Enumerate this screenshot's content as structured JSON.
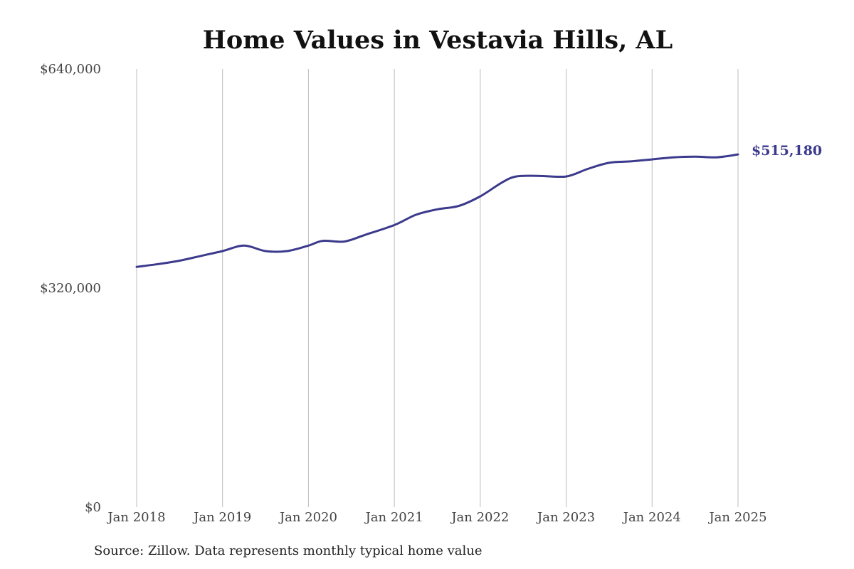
{
  "chart_data": {
    "type": "line",
    "title": "Home Values in Vestavia Hills, AL",
    "xlabel": "",
    "ylabel": "",
    "ylim": [
      0,
      640000
    ],
    "y_ticks": [
      {
        "value": 0,
        "label": "$0"
      },
      {
        "value": 320000,
        "label": "$320,000"
      },
      {
        "value": 640000,
        "label": "$640,000"
      }
    ],
    "x_ticks": [
      "Jan 2018",
      "Jan 2019",
      "Jan 2020",
      "Jan 2021",
      "Jan 2022",
      "Jan 2023",
      "Jan 2024",
      "Jan 2025"
    ],
    "grid": "vertical",
    "legend": "none",
    "series": [
      {
        "color": "#3b3a8c",
        "points": [
          {
            "x": "2018-01",
            "y": 351000
          },
          {
            "x": "2018-04",
            "y": 355000
          },
          {
            "x": "2018-07",
            "y": 360000
          },
          {
            "x": "2018-10",
            "y": 367000
          },
          {
            "x": "2019-01",
            "y": 374000
          },
          {
            "x": "2019-04",
            "y": 382000
          },
          {
            "x": "2019-07",
            "y": 374000
          },
          {
            "x": "2019-10",
            "y": 374000
          },
          {
            "x": "2020-01",
            "y": 382000
          },
          {
            "x": "2020-03",
            "y": 389000
          },
          {
            "x": "2020-06",
            "y": 388000
          },
          {
            "x": "2020-09",
            "y": 398000
          },
          {
            "x": "2021-01",
            "y": 412000
          },
          {
            "x": "2021-04",
            "y": 427000
          },
          {
            "x": "2021-07",
            "y": 435000
          },
          {
            "x": "2021-10",
            "y": 440000
          },
          {
            "x": "2022-01",
            "y": 454000
          },
          {
            "x": "2022-04",
            "y": 474000
          },
          {
            "x": "2022-06",
            "y": 483000
          },
          {
            "x": "2022-09",
            "y": 484000
          },
          {
            "x": "2023-01",
            "y": 483000
          },
          {
            "x": "2023-04",
            "y": 494000
          },
          {
            "x": "2023-07",
            "y": 503000
          },
          {
            "x": "2023-10",
            "y": 505000
          },
          {
            "x": "2024-01",
            "y": 508000
          },
          {
            "x": "2024-04",
            "y": 511000
          },
          {
            "x": "2024-07",
            "y": 512000
          },
          {
            "x": "2024-10",
            "y": 511000
          },
          {
            "x": "2025-01",
            "y": 515180
          }
        ]
      }
    ],
    "end_label": "$515,180",
    "source": "Source: Zillow. Data represents monthly typical home value"
  }
}
